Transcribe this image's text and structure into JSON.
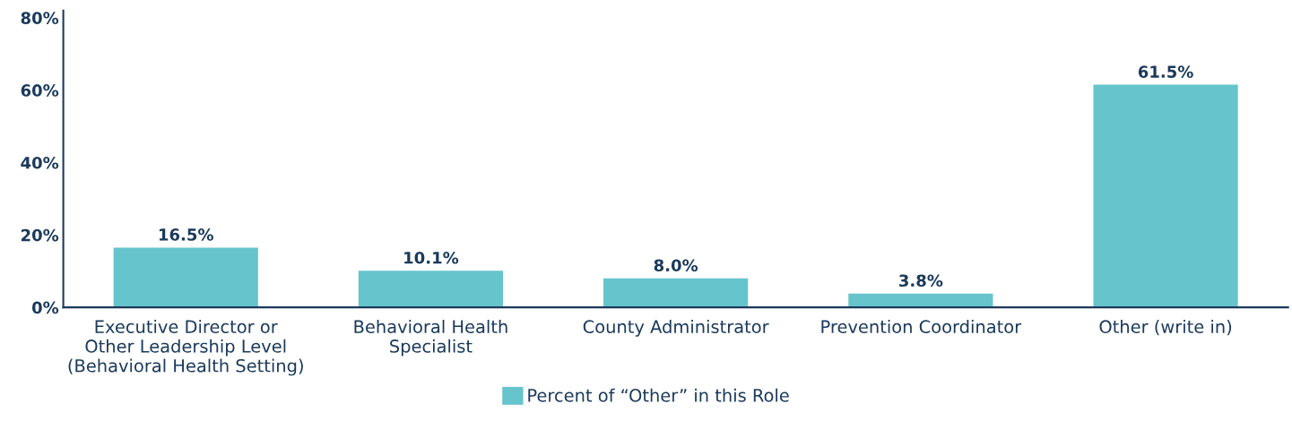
{
  "chart_data": {
    "type": "bar",
    "categories": [
      "Executive Director or\nOther Leadership Level\n(Behavioral Health Setting)",
      "Behavioral Health\nSpecialist",
      "County Administrator",
      "Prevention Coordinator",
      "Other (write in)"
    ],
    "series": [
      {
        "name": "Percent of “Other” in this Role",
        "color": "#66c4cc",
        "values": [
          16.5,
          10.1,
          8.0,
          3.8,
          61.5
        ],
        "value_labels": [
          "16.5%",
          "10.1%",
          "8.0%",
          "3.8%",
          "61.5%"
        ]
      }
    ],
    "ylim": [
      0,
      82
    ],
    "yticks": [
      {
        "value": 0,
        "label": "0%"
      },
      {
        "value": 20,
        "label": "20%"
      },
      {
        "value": 40,
        "label": "40%"
      },
      {
        "value": 60,
        "label": "60%"
      },
      {
        "value": 80,
        "label": "80%"
      }
    ],
    "grid": false,
    "legend": "bottom"
  }
}
